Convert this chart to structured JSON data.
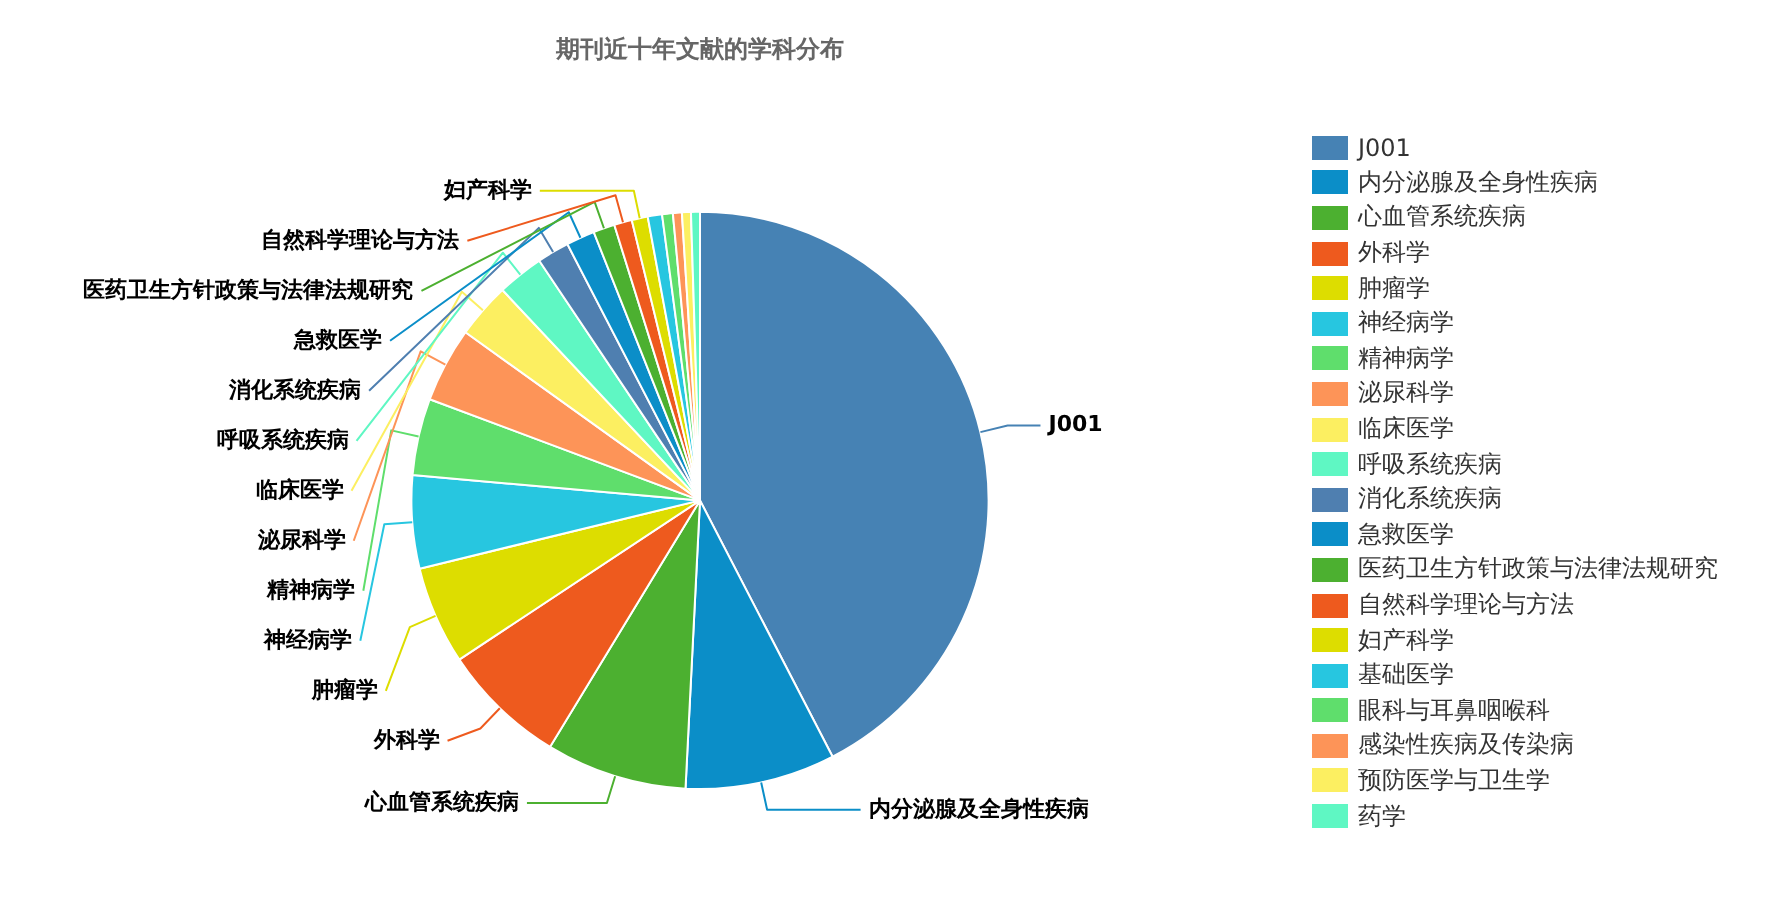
{
  "chart_data": {
    "type": "pie",
    "title": "期刊近十年文献的学科分布",
    "categories": [
      "J001",
      "内分泌腺及全身性疾病",
      "心血管系统疾病",
      "外科学",
      "肿瘤学",
      "神经病学",
      "精神病学",
      "泌尿科学",
      "临床医学",
      "呼吸系统疾病",
      "消化系统疾病",
      "急救医学",
      "医药卫生方针政策与法律法规研究",
      "自然科学理论与方法",
      "妇产科学",
      "基础医学",
      "眼科与耳鼻咽喉科",
      "感染性疾病及传染病",
      "预防医学与卫生学",
      "药学"
    ],
    "values": [
      42.4,
      8.4,
      7.9,
      7.0,
      5.5,
      5.2,
      4.3,
      4.2,
      3.1,
      2.6,
      1.8,
      1.6,
      1.2,
      1.0,
      0.9,
      0.8,
      0.6,
      0.5,
      0.5,
      0.5
    ],
    "colors": [
      "#4682b4",
      "#0b8ec8",
      "#4cb030",
      "#ee5a1e",
      "#dddd00",
      "#27c6e0",
      "#5fde6c",
      "#fd9458",
      "#fcef61",
      "#5ff7c3",
      "#4f7fb0",
      "#0b8ec8",
      "#4cb030",
      "#ee5a1e",
      "#dddd00",
      "#27c6e0",
      "#5fde6c",
      "#fd9458",
      "#fcef61",
      "#5ff7c3"
    ],
    "legend": "right"
  }
}
